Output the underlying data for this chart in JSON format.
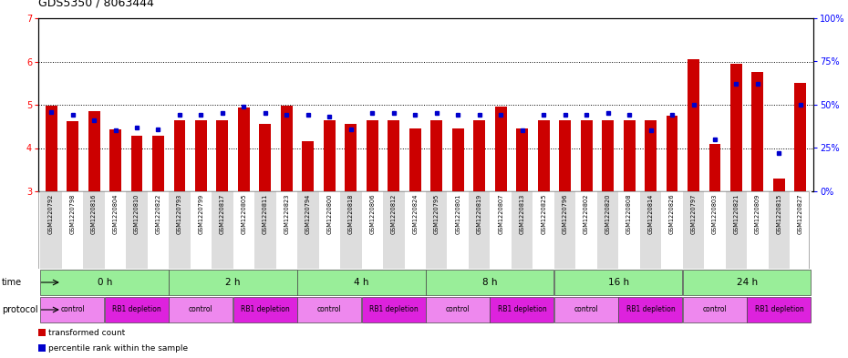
{
  "title": "GDS5350 / 8063444",
  "samples": [
    "GSM1220792",
    "GSM1220798",
    "GSM1220816",
    "GSM1220804",
    "GSM1220810",
    "GSM1220822",
    "GSM1220793",
    "GSM1220799",
    "GSM1220817",
    "GSM1220805",
    "GSM1220811",
    "GSM1220823",
    "GSM1220794",
    "GSM1220800",
    "GSM1220818",
    "GSM1220806",
    "GSM1220812",
    "GSM1220824",
    "GSM1220795",
    "GSM1220801",
    "GSM1220819",
    "GSM1220807",
    "GSM1220813",
    "GSM1220825",
    "GSM1220796",
    "GSM1220802",
    "GSM1220820",
    "GSM1220808",
    "GSM1220814",
    "GSM1220826",
    "GSM1220797",
    "GSM1220803",
    "GSM1220821",
    "GSM1220809",
    "GSM1220815",
    "GSM1220827"
  ],
  "red_values": [
    4.97,
    4.63,
    4.85,
    4.43,
    4.29,
    4.29,
    4.65,
    4.65,
    4.65,
    4.93,
    4.55,
    4.97,
    4.15,
    4.65,
    4.55,
    4.65,
    4.65,
    4.45,
    4.65,
    4.45,
    4.65,
    4.95,
    4.45,
    4.65,
    4.65,
    4.65,
    4.65,
    4.65,
    4.65,
    4.75,
    6.05,
    4.1,
    5.95,
    5.75,
    3.3,
    5.5
  ],
  "blue_values": [
    46,
    44,
    41,
    35,
    37,
    36,
    44,
    44,
    45,
    49,
    45,
    44,
    44,
    43,
    36,
    45,
    45,
    44,
    45,
    44,
    44,
    44,
    35,
    44,
    44,
    44,
    45,
    44,
    35,
    44,
    50,
    30,
    62,
    62,
    22,
    50
  ],
  "ylim_left": [
    3,
    7
  ],
  "ylim_right": [
    0,
    100
  ],
  "yticks_left": [
    3,
    4,
    5,
    6,
    7
  ],
  "yticks_right": [
    0,
    25,
    50,
    75,
    100
  ],
  "ytick_labels_right": [
    "0%",
    "25%",
    "50%",
    "75%",
    "100%"
  ],
  "bar_color": "#cc0000",
  "marker_color": "#0000cc",
  "bar_bottom": 3.0,
  "time_groups": [
    {
      "label": "0 h",
      "start": 0,
      "end": 6
    },
    {
      "label": "2 h",
      "start": 6,
      "end": 12
    },
    {
      "label": "4 h",
      "start": 12,
      "end": 18
    },
    {
      "label": "8 h",
      "start": 18,
      "end": 24
    },
    {
      "label": "16 h",
      "start": 24,
      "end": 30
    },
    {
      "label": "24 h",
      "start": 30,
      "end": 36
    }
  ],
  "protocol_groups": [
    {
      "label": "control",
      "start": 0,
      "end": 3,
      "color": "#ee88ee"
    },
    {
      "label": "RB1 depletion",
      "start": 3,
      "end": 6,
      "color": "#dd22dd"
    },
    {
      "label": "control",
      "start": 6,
      "end": 9,
      "color": "#ee88ee"
    },
    {
      "label": "RB1 depletion",
      "start": 9,
      "end": 12,
      "color": "#dd22dd"
    },
    {
      "label": "control",
      "start": 12,
      "end": 15,
      "color": "#ee88ee"
    },
    {
      "label": "RB1 depletion",
      "start": 15,
      "end": 18,
      "color": "#dd22dd"
    },
    {
      "label": "control",
      "start": 18,
      "end": 21,
      "color": "#ee88ee"
    },
    {
      "label": "RB1 depletion",
      "start": 21,
      "end": 24,
      "color": "#dd22dd"
    },
    {
      "label": "control",
      "start": 24,
      "end": 27,
      "color": "#ee88ee"
    },
    {
      "label": "RB1 depletion",
      "start": 27,
      "end": 30,
      "color": "#dd22dd"
    },
    {
      "label": "control",
      "start": 30,
      "end": 33,
      "color": "#ee88ee"
    },
    {
      "label": "RB1 depletion",
      "start": 33,
      "end": 36,
      "color": "#dd22dd"
    }
  ],
  "time_bg_color": "#99ee99",
  "sample_bg_even": "#dddddd",
  "sample_bg_odd": "#ffffff",
  "legend_items": [
    {
      "color": "#cc0000",
      "label": "transformed count"
    },
    {
      "color": "#0000cc",
      "label": "percentile rank within the sample"
    }
  ]
}
